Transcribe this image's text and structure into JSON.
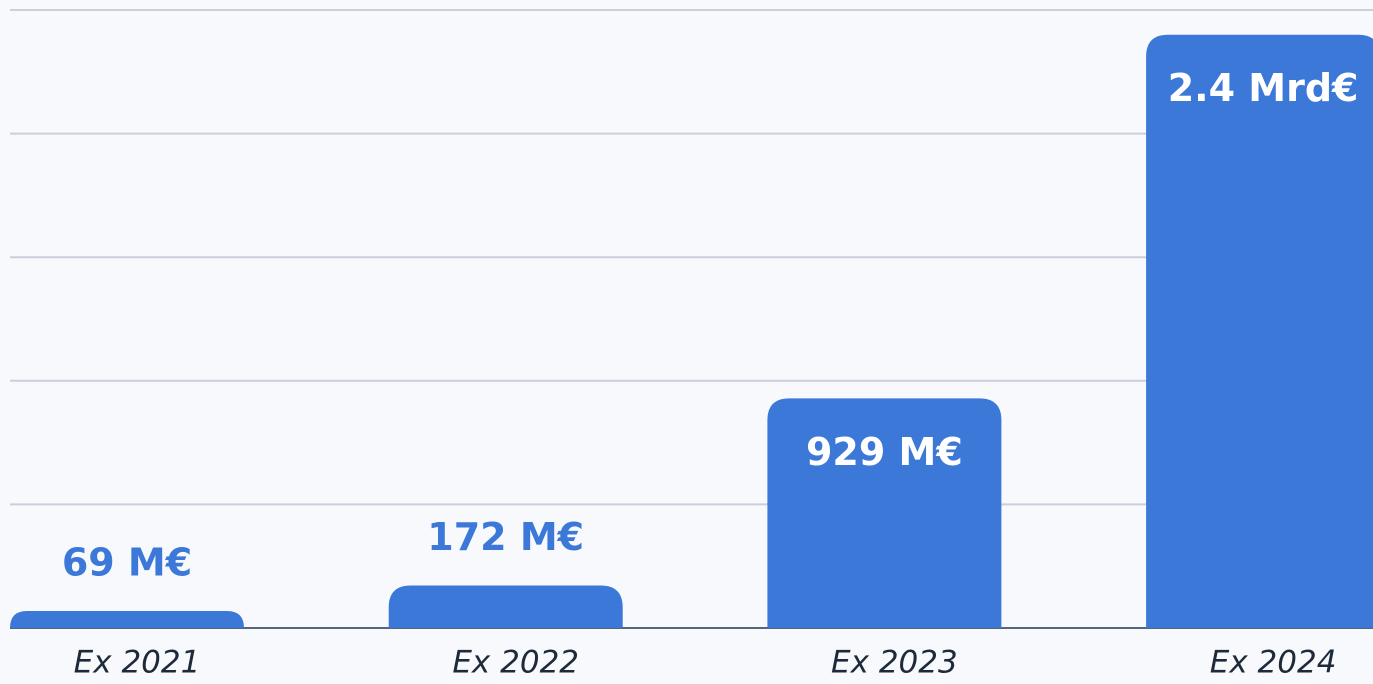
{
  "chart_data": {
    "type": "bar",
    "categories": [
      "Ex 2021",
      "Ex 2022",
      "Ex 2023",
      "Ex 2024"
    ],
    "values": [
      69,
      172,
      929,
      2400
    ],
    "value_labels": [
      "69 M€",
      "172 M€",
      "929 M€",
      "2.4 Mrd€"
    ],
    "color": "#3b78d8",
    "ylim": [
      0,
      2500
    ],
    "yticks": [
      0,
      500,
      1000,
      1500,
      2000,
      2500
    ],
    "grid": true
  }
}
